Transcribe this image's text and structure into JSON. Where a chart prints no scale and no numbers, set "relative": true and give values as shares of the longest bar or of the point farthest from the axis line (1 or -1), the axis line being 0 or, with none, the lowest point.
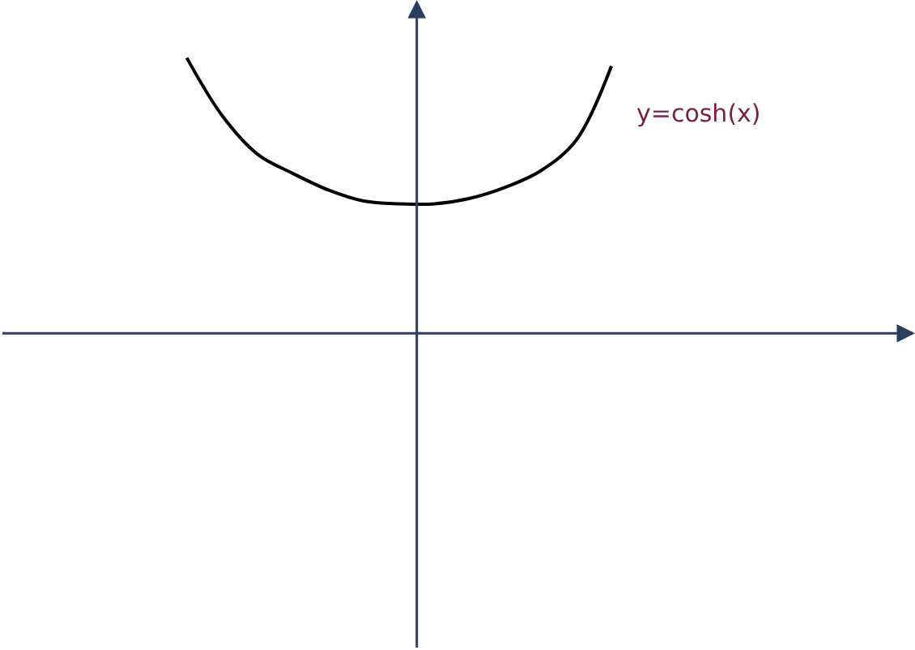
{
  "chart_data": {
    "type": "line",
    "relative": true,
    "categories": [
      null,
      null,
      null,
      null,
      null,
      null,
      null,
      null,
      null,
      null,
      null,
      null,
      null
    ],
    "values": [
      1.0,
      0.79,
      0.65,
      0.58,
      0.52,
      0.48,
      0.47,
      0.47,
      0.49,
      0.53,
      0.59,
      0.7,
      0.97
    ],
    "color": "#000000",
    "annotations": [
      "y=cosh(x)"
    ]
  }
}
